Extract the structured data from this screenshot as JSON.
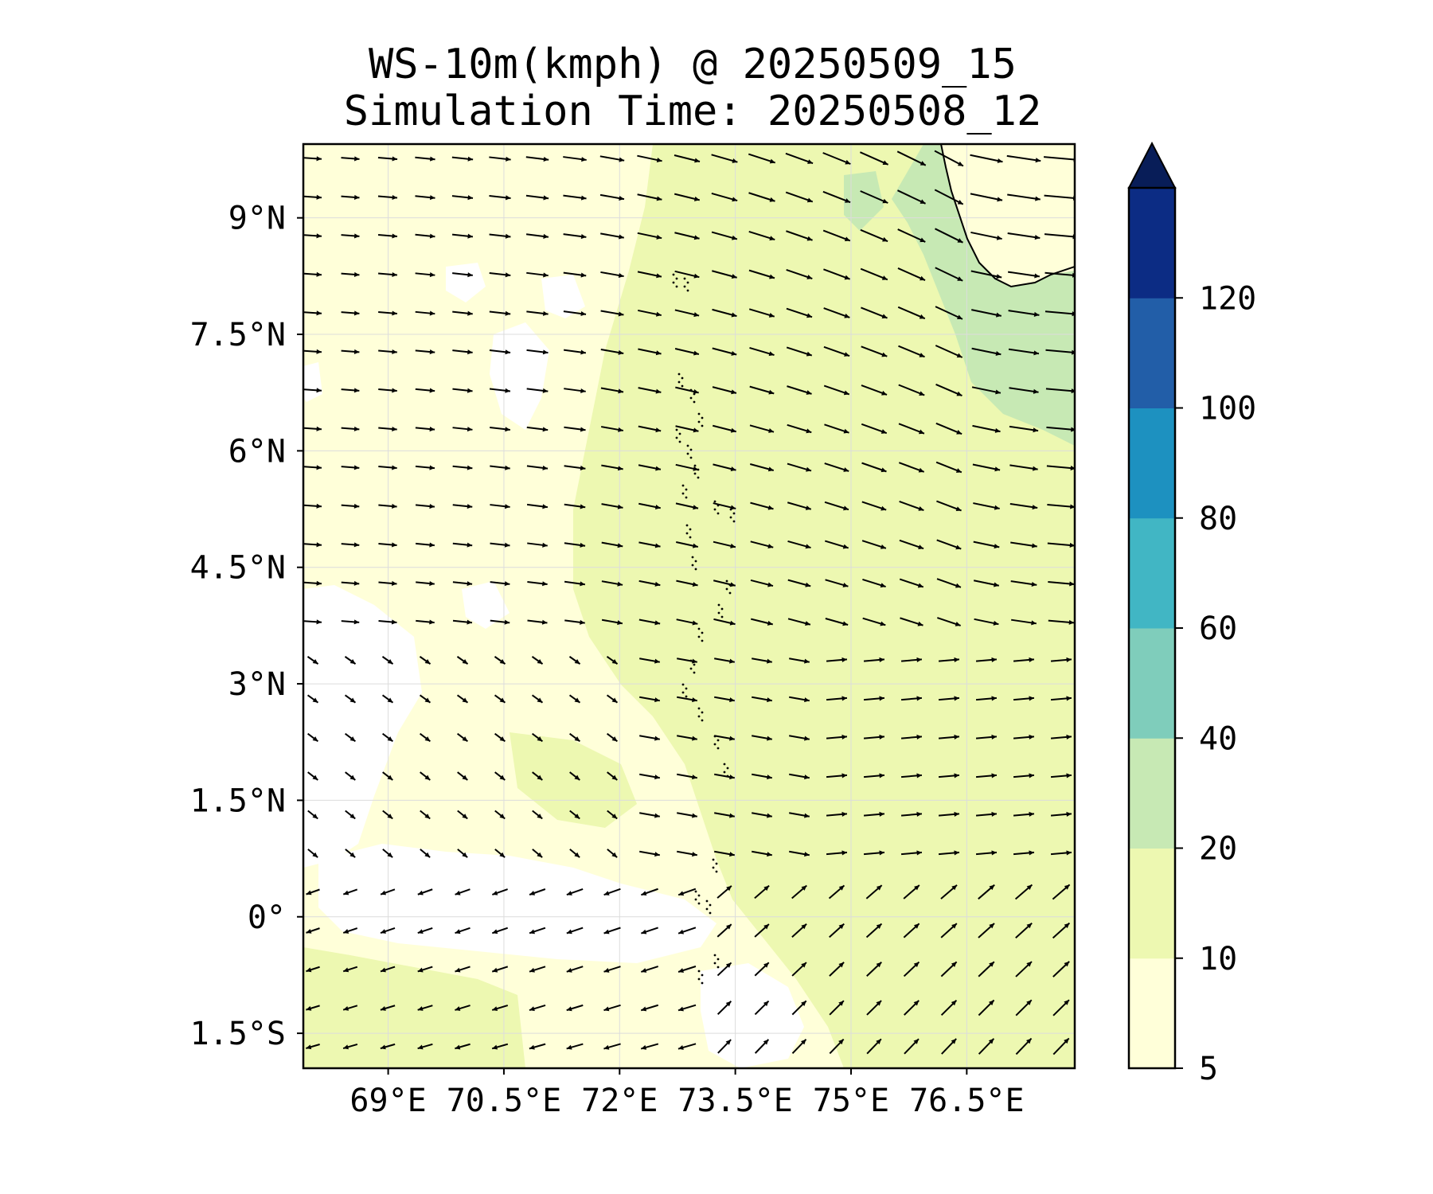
{
  "title": {
    "line1": "WS-10m(kmph) @ 20250509_15",
    "line2": "Simulation Time: 20250508_12"
  },
  "map": {
    "lon_range": [
      67.9,
      77.9
    ],
    "lat_range": [
      -1.95,
      9.95
    ],
    "lat_ticks": [
      {
        "value": 9,
        "label": "9°N"
      },
      {
        "value": 7.5,
        "label": "7.5°N"
      },
      {
        "value": 6,
        "label": "6°N"
      },
      {
        "value": 4.5,
        "label": "4.5°N"
      },
      {
        "value": 3,
        "label": "3°N"
      },
      {
        "value": 1.5,
        "label": "1.5°N"
      },
      {
        "value": 0,
        "label": "0°"
      },
      {
        "value": -1.5,
        "label": "1.5°S"
      }
    ],
    "lon_ticks": [
      {
        "value": 69,
        "label": "69°E"
      },
      {
        "value": 70.5,
        "label": "70.5°E"
      },
      {
        "value": 72,
        "label": "72°E"
      },
      {
        "value": 73.5,
        "label": "73.5°E"
      },
      {
        "value": 75,
        "label": "75°E"
      },
      {
        "value": 76.5,
        "label": "76.5°E"
      }
    ],
    "gridlines": true
  },
  "colorbar": {
    "levels": [
      5,
      10,
      20,
      40,
      60,
      80,
      100,
      120
    ],
    "labels": [
      "5",
      "10",
      "20",
      "40",
      "60",
      "80",
      "100",
      "120"
    ],
    "colors": [
      "#ffffd9",
      "#edf8b1",
      "#c7e9b4",
      "#7fcdbb",
      "#41b6c4",
      "#1d91c0",
      "#225ea8",
      "#0c2c84"
    ],
    "extend": "max",
    "extend_color": "#081d58"
  },
  "colors": {
    "field_low": "#ffffd9",
    "field_mid": "#edf8b1",
    "field_high": "#c7e9b4",
    "arrow": "#000000",
    "coast": "#000000"
  }
}
